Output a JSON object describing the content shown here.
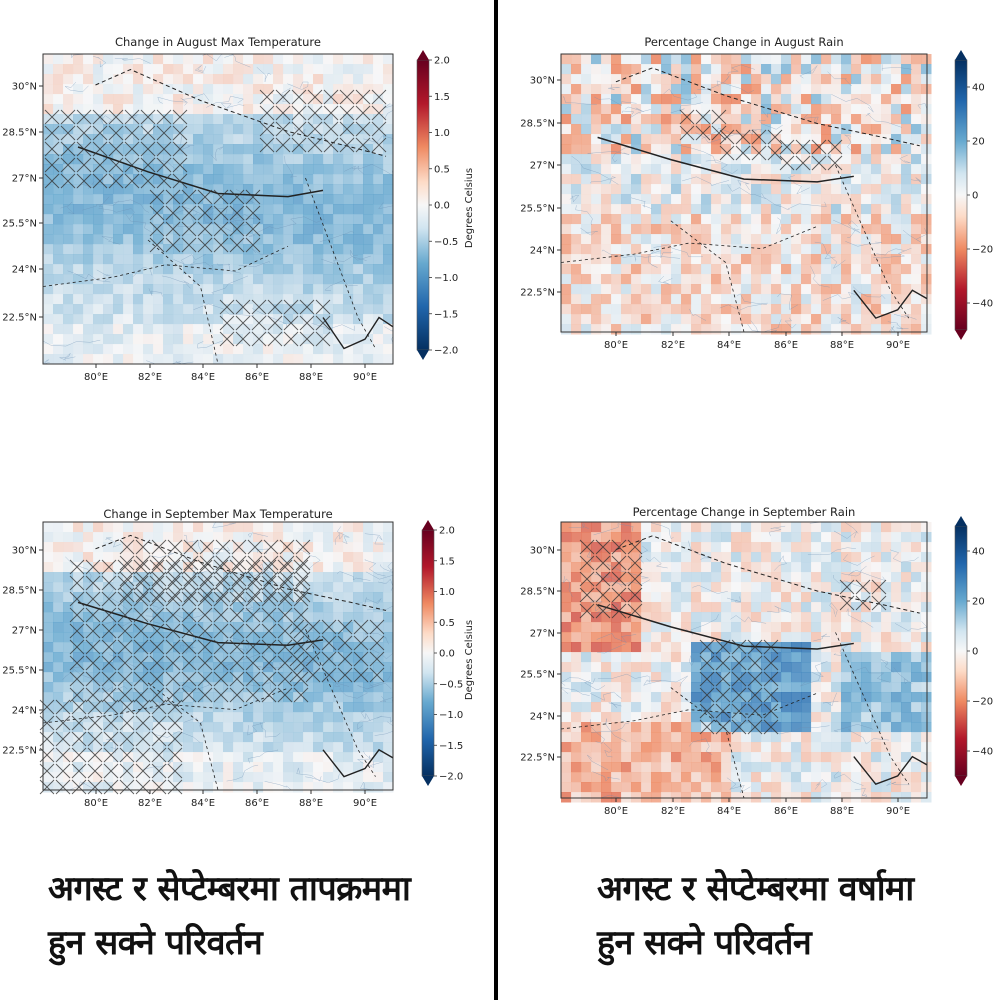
{
  "panels": [
    {
      "id": "aug-temp",
      "title": "Change in August Max Temperature",
      "colorbar": {
        "label": "Degrees Celsius",
        "ticks": [
          "2.0",
          "1.5",
          "1.0",
          "0.5",
          "0.0",
          "−0.5",
          "−1.0",
          "−1.5",
          "−2.0"
        ],
        "range": [
          -2.0,
          2.0
        ]
      },
      "lon_ticks": [
        "80°E",
        "82°E",
        "84°E",
        "86°E",
        "88°E",
        "90°E"
      ],
      "lat_ticks": [
        "30°N",
        "28.5°N",
        "27°N",
        "25.5°N",
        "24°N",
        "22.5°N"
      ]
    },
    {
      "id": "aug-rain",
      "title": "Percentage Change in August Rain",
      "colorbar": {
        "label": "",
        "ticks": [
          "40",
          "20",
          "0",
          "−20",
          "−40"
        ],
        "range": [
          -50,
          50
        ]
      },
      "lon_ticks": [
        "80°E",
        "82°E",
        "84°E",
        "86°E",
        "88°E",
        "90°E"
      ],
      "lat_ticks": [
        "30°N",
        "28.5°N",
        "27°N",
        "25.5°N",
        "24°N",
        "22.5°N"
      ]
    },
    {
      "id": "sep-temp",
      "title": "Change in September Max Temperature",
      "colorbar": {
        "label": "Degrees Celsius",
        "ticks": [
          "2.0",
          "1.5",
          "1.0",
          "0.5",
          "0.0",
          "−0.5",
          "−1.0",
          "−1.5",
          "−2.0"
        ],
        "range": [
          -2.0,
          2.0
        ]
      },
      "lon_ticks": [
        "80°E",
        "82°E",
        "84°E",
        "86°E",
        "88°E",
        "90°E"
      ],
      "lat_ticks": [
        "30°N",
        "28.5°N",
        "27°N",
        "25.5°N",
        "24°N",
        "22.5°N"
      ]
    },
    {
      "id": "sep-rain",
      "title": "Percentage Change in September Rain",
      "colorbar": {
        "label": "",
        "ticks": [
          "40",
          "20",
          "0",
          "−20",
          "−40"
        ],
        "range": [
          -50,
          50
        ]
      },
      "lon_ticks": [
        "80°E",
        "82°E",
        "84°E",
        "86°E",
        "88°E",
        "90°E"
      ],
      "lat_ticks": [
        "30°N",
        "28.5°N",
        "27°N",
        "25.5°N",
        "24°N",
        "22.5°N"
      ]
    }
  ],
  "captions": {
    "left": [
      "अगस्ट र सेप्टेम्बरमा तापक्रममा",
      "हुन सक्ने परिवर्तन"
    ],
    "right": [
      "अगस्ट र सेप्टेम्बरमा वर्षामा",
      "हुन सक्ने परिवर्तन"
    ]
  },
  "colors": {
    "warm": "#b2182b",
    "cool": "#2166ac",
    "neutral": "#f7f7f7"
  }
}
